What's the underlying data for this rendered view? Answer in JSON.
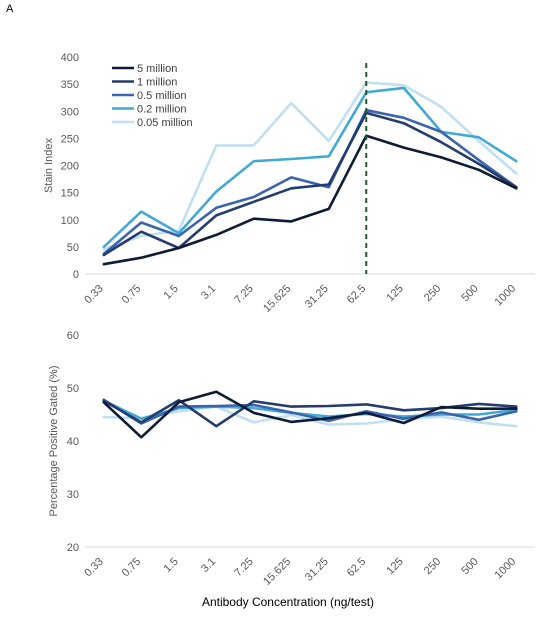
{
  "figure": {
    "panel_label": "A"
  },
  "chart_data": [
    {
      "type": "line",
      "title": "",
      "xlabel": "",
      "ylabel": "Stain Index",
      "ylim": [
        0,
        400
      ],
      "yticks": [
        0,
        50,
        100,
        150,
        200,
        250,
        300,
        350,
        400
      ],
      "grid": false,
      "legend_position": "top-left",
      "categories": [
        "0.33",
        "0.75",
        "1.5",
        "3.1",
        "7.25",
        "15.625",
        "31.25",
        "62.5",
        "125",
        "250",
        "500",
        "1000"
      ],
      "reference_line": {
        "category": "62.5",
        "style": "dashed",
        "color": "#1e5a2e"
      },
      "series": [
        {
          "name": "5 million",
          "color": "#0d1b36",
          "values": [
            18,
            30,
            48,
            72,
            102,
            97,
            120,
            255,
            233,
            215,
            192,
            158
          ]
        },
        {
          "name": "1 million",
          "color": "#243c6e",
          "values": [
            35,
            78,
            48,
            108,
            133,
            158,
            165,
            297,
            278,
            243,
            203,
            160
          ]
        },
        {
          "name": "0.5 million",
          "color": "#3a64b0",
          "values": [
            37,
            95,
            70,
            122,
            142,
            178,
            160,
            302,
            288,
            262,
            210,
            160
          ]
        },
        {
          "name": "0.2 million",
          "color": "#42a9d4",
          "values": [
            50,
            115,
            75,
            152,
            208,
            212,
            217,
            335,
            343,
            262,
            252,
            208
          ]
        },
        {
          "name": "0.05 million",
          "color": "#c0dff1",
          "values": [
            45,
            70,
            80,
            237,
            237,
            315,
            245,
            353,
            348,
            308,
            245,
            185
          ]
        }
      ]
    },
    {
      "type": "line",
      "title": "",
      "xlabel": "Antibody Concentration (ng/test)",
      "ylabel": "Percentage Positive Gated (%)",
      "ylim": [
        20,
        60
      ],
      "yticks": [
        20,
        30,
        40,
        50,
        60
      ],
      "grid": false,
      "categories": [
        "0.33",
        "0.75",
        "1.5",
        "3.1",
        "7.25",
        "15.625",
        "31.25",
        "62.5",
        "125",
        "250",
        "500",
        "1000"
      ],
      "series": [
        {
          "color": "#0d1b36",
          "values": [
            47.3,
            40.7,
            47.3,
            49.3,
            45.3,
            43.6,
            44.3,
            45.3,
            43.4,
            46.4,
            46.1,
            46.1
          ]
        },
        {
          "color": "#243c6e",
          "values": [
            47.6,
            43.5,
            47.7,
            42.8,
            47.5,
            46.5,
            46.6,
            46.9,
            45.8,
            46.2,
            47.0,
            46.5
          ]
        },
        {
          "color": "#3a64b0",
          "values": [
            47.8,
            43.3,
            46.5,
            46.6,
            46.8,
            45.4,
            43.8,
            45.6,
            44.2,
            45.4,
            44.0,
            45.6
          ]
        },
        {
          "color": "#42a9d4",
          "values": [
            47.6,
            44.2,
            46.2,
            46.5,
            46.2,
            45.3,
            44.6,
            45.1,
            44.6,
            45.0,
            45.0,
            45.9
          ]
        },
        {
          "color": "#c0dff1",
          "values": [
            44.5,
            44.3,
            45.6,
            46.5,
            43.5,
            44.9,
            43.1,
            43.3,
            44.1,
            44.6,
            43.5,
            42.8
          ]
        }
      ]
    }
  ]
}
